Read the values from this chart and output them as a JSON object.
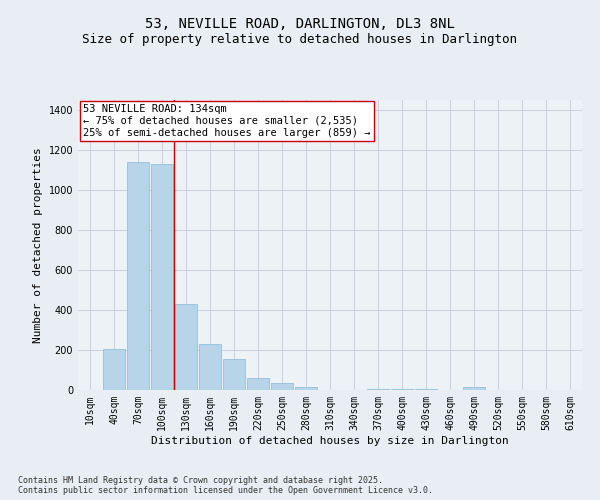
{
  "title": "53, NEVILLE ROAD, DARLINGTON, DL3 8NL",
  "subtitle": "Size of property relative to detached houses in Darlington",
  "xlabel": "Distribution of detached houses by size in Darlington",
  "ylabel": "Number of detached properties",
  "categories": [
    "10sqm",
    "40sqm",
    "70sqm",
    "100sqm",
    "130sqm",
    "160sqm",
    "190sqm",
    "220sqm",
    "250sqm",
    "280sqm",
    "310sqm",
    "340sqm",
    "370sqm",
    "400sqm",
    "430sqm",
    "460sqm",
    "490sqm",
    "520sqm",
    "550sqm",
    "580sqm",
    "610sqm"
  ],
  "values": [
    0,
    205,
    1140,
    1130,
    430,
    230,
    155,
    60,
    35,
    15,
    0,
    0,
    5,
    5,
    5,
    0,
    15,
    0,
    0,
    0,
    0
  ],
  "bar_color": "#b8d4e8",
  "bar_edge_color": "#8ab8d4",
  "property_line_color": "#cc0000",
  "annotation_line1": "53 NEVILLE ROAD: 134sqm",
  "annotation_line2": "← 75% of detached houses are smaller (2,535)",
  "annotation_line3": "25% of semi-detached houses are larger (859) →",
  "annotation_box_color": "#ffffff",
  "annotation_box_edge_color": "#cc0000",
  "ylim": [
    0,
    1450
  ],
  "yticks": [
    0,
    200,
    400,
    600,
    800,
    1000,
    1200,
    1400
  ],
  "bg_color": "#e8eef4",
  "plot_bg_color": "#edf2f7",
  "footer_line1": "Contains HM Land Registry data © Crown copyright and database right 2025.",
  "footer_line2": "Contains public sector information licensed under the Open Government Licence v3.0.",
  "title_fontsize": 10,
  "subtitle_fontsize": 9,
  "xlabel_fontsize": 8,
  "ylabel_fontsize": 8,
  "tick_fontsize": 7,
  "annotation_fontsize": 7.5,
  "footer_fontsize": 6
}
